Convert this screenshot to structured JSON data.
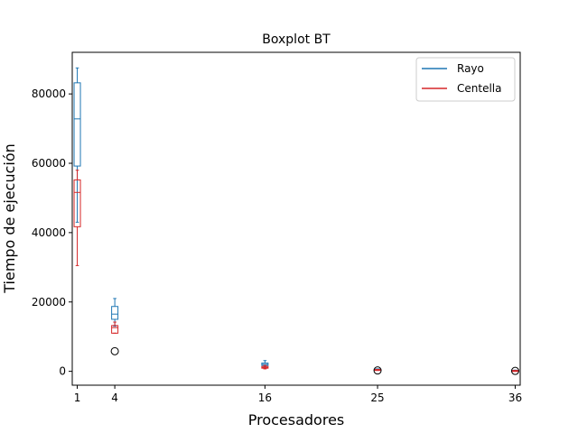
{
  "chart_data": {
    "type": "boxplot",
    "title": "Boxplot BT",
    "xlabel": "Procesadores",
    "ylabel": "Tiempo de ejecución",
    "xlim": [
      0.6,
      36.4
    ],
    "ylim": [
      -4000,
      92000
    ],
    "x_ticks": [
      1,
      4,
      16,
      25,
      36
    ],
    "x_tick_labels": [
      "1",
      "4",
      "16",
      "25",
      "36"
    ],
    "y_ticks": [
      0,
      20000,
      40000,
      60000,
      80000
    ],
    "y_tick_labels": [
      "0",
      "20000",
      "40000",
      "60000",
      "80000"
    ],
    "grid": false,
    "legend_position": "top-right",
    "series": [
      {
        "name": "Rayo",
        "color": "#1f77b4",
        "boxes": [
          {
            "x": 1,
            "whisker_low": 43000,
            "q1": 59200,
            "median": 72800,
            "q3": 83200,
            "whisker_high": 87500,
            "outliers": []
          },
          {
            "x": 4,
            "whisker_low": 13000,
            "q1": 15000,
            "median": 16500,
            "q3": 18700,
            "whisker_high": 21000,
            "outliers": []
          },
          {
            "x": 16,
            "whisker_low": 1200,
            "q1": 1700,
            "median": 2000,
            "q3": 2400,
            "whisker_high": 3100,
            "outliers": []
          },
          {
            "x": 25,
            "whisker_low": 500,
            "q1": 550,
            "median": 600,
            "q3": 650,
            "whisker_high": 700,
            "outliers": []
          },
          {
            "x": 36,
            "whisker_low": 200,
            "q1": 250,
            "median": 280,
            "q3": 300,
            "whisker_high": 350,
            "outliers": []
          }
        ]
      },
      {
        "name": "Centella",
        "color": "#d62728",
        "boxes": [
          {
            "x": 1,
            "whisker_low": 30500,
            "q1": 41700,
            "median": 51600,
            "q3": 55200,
            "whisker_high": 58000,
            "outliers": []
          },
          {
            "x": 4,
            "whisker_low": 11000,
            "q1": 11000,
            "median": 12600,
            "q3": 13200,
            "whisker_high": 14200,
            "outliers": [
              5800
            ]
          },
          {
            "x": 16,
            "whisker_low": 700,
            "q1": 900,
            "median": 1100,
            "q3": 1400,
            "whisker_high": 1700,
            "outliers": []
          },
          {
            "x": 25,
            "whisker_low": 350,
            "q1": 400,
            "median": 450,
            "q3": 500,
            "whisker_high": 550,
            "outliers": [
              250
            ]
          },
          {
            "x": 36,
            "whisker_low": 150,
            "q1": 180,
            "median": 200,
            "q3": 220,
            "whisker_high": 240,
            "outliers": [
              120
            ]
          }
        ]
      }
    ]
  }
}
